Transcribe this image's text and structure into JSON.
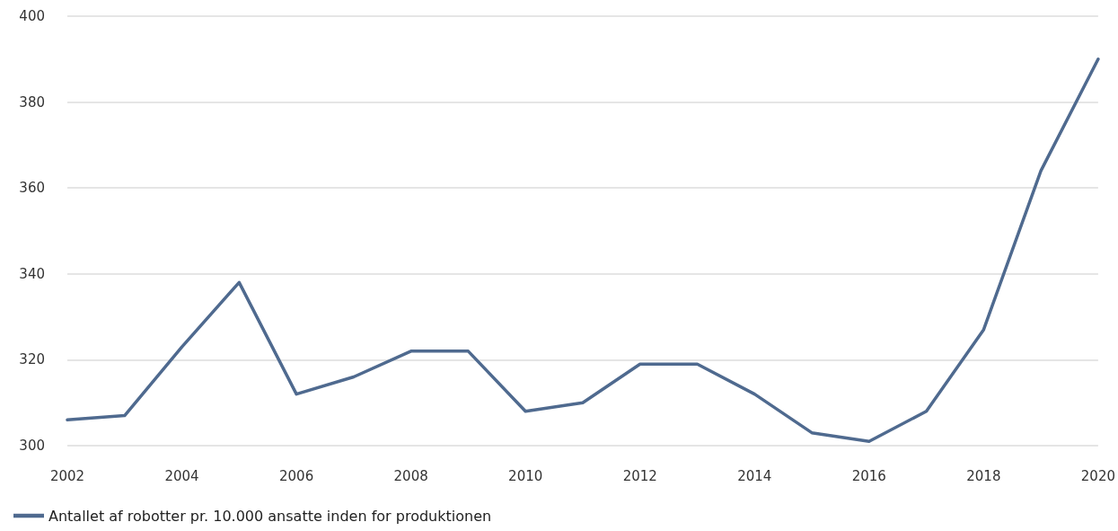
{
  "chart_data": {
    "type": "line",
    "x": [
      2002,
      2003,
      2004,
      2005,
      2006,
      2007,
      2008,
      2009,
      2010,
      2011,
      2012,
      2013,
      2014,
      2015,
      2016,
      2017,
      2018,
      2019,
      2020
    ],
    "series": [
      {
        "name": "Antallet af robotter pr. 10.000 ansatte inden for produktionen",
        "color": "#4f6a8f",
        "values": [
          306,
          307,
          323,
          338,
          312,
          316,
          322,
          322,
          308,
          310,
          319,
          319,
          312,
          303,
          301,
          308,
          327,
          364,
          390
        ]
      }
    ],
    "xlim": [
      2002,
      2020
    ],
    "xticks": [
      2002,
      2004,
      2006,
      2008,
      2010,
      2012,
      2014,
      2016,
      2018,
      2020
    ],
    "ylim": [
      300,
      400
    ],
    "yticks": [
      300,
      320,
      340,
      360,
      380,
      400
    ],
    "grid": "y",
    "legend": "bottom left",
    "marker": "none",
    "line_style": "solid"
  }
}
